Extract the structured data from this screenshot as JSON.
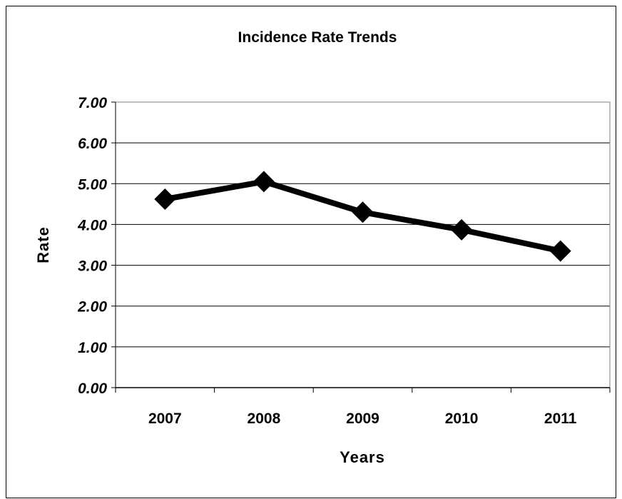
{
  "chart_data": {
    "type": "line",
    "title": "Incidence Rate Trends",
    "xlabel": "Years",
    "ylabel": "Rate",
    "categories": [
      "2007",
      "2008",
      "2009",
      "2010",
      "2011"
    ],
    "series": [
      {
        "values": [
          4.62,
          5.05,
          4.3,
          3.87,
          3.35
        ]
      }
    ],
    "ylim": [
      0,
      7
    ],
    "yticks": [
      "0.00",
      "1.00",
      "2.00",
      "3.00",
      "4.00",
      "5.00",
      "6.00",
      "7.00"
    ],
    "grid": true,
    "marker": "diamond",
    "colors": {
      "line": "#000000",
      "grid": "#000000",
      "background": "#ffffff"
    }
  }
}
